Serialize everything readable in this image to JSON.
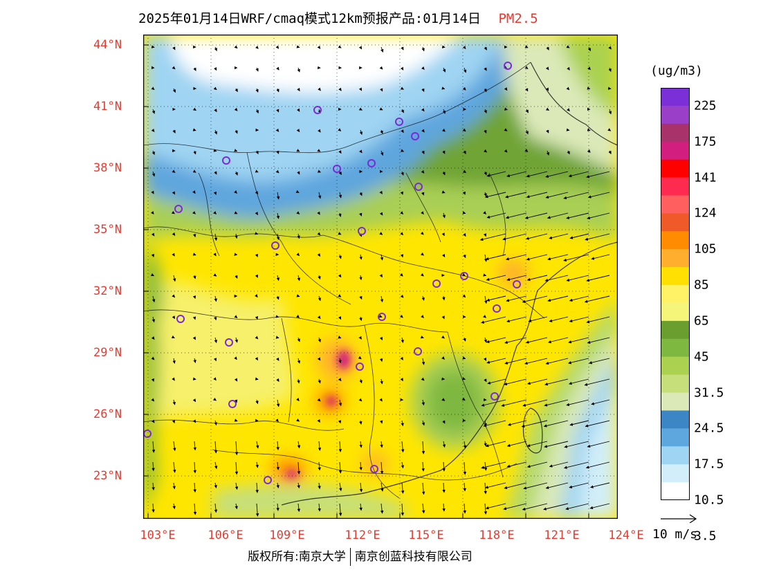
{
  "title": {
    "main": "2025年01月14日WRF/cmaq模式12km预报产品:01月14日",
    "species": "PM2.5"
  },
  "map": {
    "lat_labels": [
      "44°N",
      "41°N",
      "38°N",
      "35°N",
      "32°N",
      "29°N",
      "26°N",
      "23°N"
    ],
    "lon_labels": [
      "103°E",
      "106°E",
      "109°E",
      "112°E",
      "115°E",
      "118°E",
      "121°E",
      "124°E"
    ],
    "vector_reference": "10 m/s"
  },
  "colorbar": {
    "unit": "(ug/m3)",
    "labels": [
      "225",
      "175",
      "141",
      "124",
      "105",
      "85",
      "65",
      "45",
      "31.5",
      "24.5",
      "17.5",
      "10.5",
      "3.5"
    ],
    "colors": [
      "#7b2fd6",
      "#9a3fc8",
      "#a8336a",
      "#d21f7f",
      "#ff0000",
      "#ff2a4f",
      "#ff5f5f",
      "#f05a28",
      "#ff8c00",
      "#ffae2e",
      "#ffe000",
      "#fff266",
      "#f5f57a",
      "#6a9e2e",
      "#7fb840",
      "#aad14f",
      "#c6df7a",
      "#dbe9b8",
      "#3d86c6",
      "#5ea6de",
      "#9fd4f2",
      "#d2eef8",
      "#ffffff"
    ]
  },
  "footer": {
    "copyright": "版权所有:南京大学",
    "company": "南京创蓝科技有限公司"
  }
}
